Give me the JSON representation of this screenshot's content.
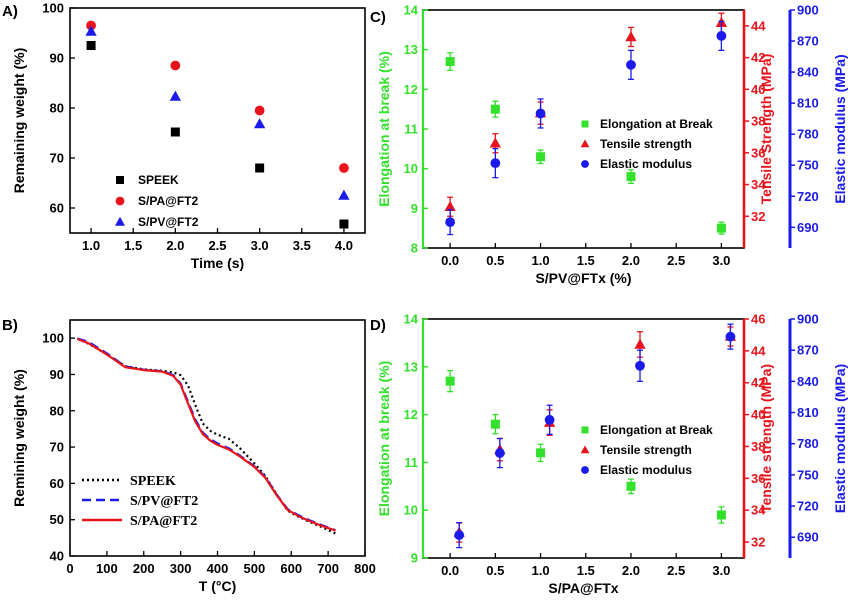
{
  "chart_data": [
    {
      "panel": "A)",
      "type": "scatter",
      "xlabel": "Time (s)",
      "ylabel": "Remaining weight (%)",
      "xlim": [
        0.75,
        4.25
      ],
      "ylim": [
        55,
        100
      ],
      "xticks": [
        1.0,
        1.5,
        2.0,
        2.5,
        3.0,
        3.5,
        4.0
      ],
      "yticks": [
        60,
        70,
        80,
        90,
        100
      ],
      "x": [
        1,
        2,
        3,
        4
      ],
      "legend_position": "lower-left",
      "series": [
        {
          "name": "SPEEK",
          "color": "#000000",
          "marker": "square",
          "values": [
            92.5,
            75.2,
            68.0,
            56.8
          ]
        },
        {
          "name": "S/PA@FT2",
          "color": "#e8141b",
          "marker": "circle",
          "values": [
            96.5,
            88.5,
            79.5,
            68.0
          ]
        },
        {
          "name": "S/PV@FT2",
          "color": "#1a1aeb",
          "marker": "triangle",
          "values": [
            95.3,
            82.3,
            76.8,
            62.5
          ]
        }
      ]
    },
    {
      "panel": "B)",
      "type": "line",
      "xlabel": "T (°C)",
      "ylabel": "Remining weight (%)",
      "xlim": [
        0,
        800
      ],
      "ylim": [
        40,
        105
      ],
      "xticks": [
        0,
        100,
        200,
        300,
        400,
        500,
        600,
        700,
        800
      ],
      "yticks": [
        40,
        50,
        60,
        70,
        80,
        90,
        100
      ],
      "legend_position": "lower-left",
      "series": [
        {
          "name": "SPEEK",
          "color": "#000000",
          "dash": "dotted",
          "points": [
            [
              20,
              99.8
            ],
            [
              50,
              98.5
            ],
            [
              100,
              95.5
            ],
            [
              150,
              92.3
            ],
            [
              200,
              91.4
            ],
            [
              250,
              91.0
            ],
            [
              280,
              90.6
            ],
            [
              300,
              89.8
            ],
            [
              320,
              87.0
            ],
            [
              340,
              81.5
            ],
            [
              360,
              76.5
            ],
            [
              380,
              74.5
            ],
            [
              400,
              73.4
            ],
            [
              430,
              72.3
            ],
            [
              460,
              69.8
            ],
            [
              500,
              65.5
            ],
            [
              530,
              62.0
            ],
            [
              560,
              57.0
            ],
            [
              590,
              52.5
            ],
            [
              620,
              50.8
            ],
            [
              650,
              49.4
            ],
            [
              680,
              48.1
            ],
            [
              720,
              46.2
            ]
          ]
        },
        {
          "name": "S/PV@FT2",
          "color": "#1a1aeb",
          "dash": "dashed",
          "points": [
            [
              20,
              99.9
            ],
            [
              50,
              99.0
            ],
            [
              100,
              95.8
            ],
            [
              150,
              92.2
            ],
            [
              200,
              91.3
            ],
            [
              250,
              90.9
            ],
            [
              280,
              89.8
            ],
            [
              300,
              87.5
            ],
            [
              320,
              82.5
            ],
            [
              340,
              77.5
            ],
            [
              360,
              74.0
            ],
            [
              380,
              72.2
            ],
            [
              400,
              71.0
            ],
            [
              430,
              69.7
            ],
            [
              460,
              67.7
            ],
            [
              500,
              64.7
            ],
            [
              530,
              61.8
            ],
            [
              560,
              57.0
            ],
            [
              590,
              52.9
            ],
            [
              620,
              51.2
            ],
            [
              650,
              49.8
            ],
            [
              680,
              48.6
            ],
            [
              720,
              47.1
            ]
          ]
        },
        {
          "name": "S/PA@FT2",
          "color": "#e8141b",
          "dash": "solid",
          "points": [
            [
              20,
              99.8
            ],
            [
              50,
              98.6
            ],
            [
              100,
              95.5
            ],
            [
              150,
              92.0
            ],
            [
              200,
              91.2
            ],
            [
              250,
              90.8
            ],
            [
              280,
              89.6
            ],
            [
              300,
              87.2
            ],
            [
              320,
              82.0
            ],
            [
              340,
              77.0
            ],
            [
              360,
              73.6
            ],
            [
              380,
              71.8
            ],
            [
              400,
              70.6
            ],
            [
              430,
              69.4
            ],
            [
              460,
              67.5
            ],
            [
              500,
              64.5
            ],
            [
              530,
              61.5
            ],
            [
              560,
              56.8
            ],
            [
              590,
              52.7
            ],
            [
              620,
              51.0
            ],
            [
              650,
              49.6
            ],
            [
              680,
              48.4
            ],
            [
              720,
              47.0
            ]
          ]
        }
      ]
    },
    {
      "panel": "C)",
      "type": "scatter",
      "xlabel": "S/PV@FTx (%)",
      "xlim": [
        -0.3,
        3.25
      ],
      "xticks": [
        0.0,
        0.5,
        1.0,
        1.5,
        2.0,
        2.5,
        3.0
      ],
      "x": [
        0,
        0.5,
        1.0,
        2.0,
        3.0
      ],
      "legend_position": "right",
      "axes": [
        {
          "label": "Elongation at break (%)",
          "color": "#33e02b",
          "side": "left",
          "lim": [
            8,
            14
          ],
          "ticks": [
            8,
            9,
            10,
            11,
            12,
            13,
            14
          ]
        },
        {
          "label": "Tensile Strength (MPa)",
          "color": "#e8141b",
          "side": "right",
          "lim": [
            30,
            45
          ],
          "ticks": [
            32,
            34,
            36,
            38,
            40,
            42,
            44
          ]
        },
        {
          "label": "Elastic modulus (MPa)",
          "color": "#1a1aeb",
          "side": "right-outer",
          "lim": [
            670,
            900
          ],
          "ticks": [
            690,
            720,
            750,
            780,
            810,
            840,
            870,
            900
          ]
        }
      ],
      "series": [
        {
          "name": "Elongation at Break",
          "axis": 0,
          "color": "#33e02b",
          "marker": "square",
          "values": [
            12.7,
            11.5,
            10.3,
            9.8,
            8.5
          ],
          "errors": [
            0.22,
            0.2,
            0.17,
            0.17,
            0.15
          ]
        },
        {
          "name": "Tensile strength",
          "axis": 1,
          "color": "#e8141b",
          "marker": "triangle",
          "values": [
            32.6,
            36.6,
            38.5,
            43.3,
            44.2
          ],
          "errors": [
            0.6,
            0.6,
            0.7,
            0.6,
            0.6
          ]
        },
        {
          "name": "Elastic modulus",
          "axis": 2,
          "color": "#1a1aeb",
          "marker": "circle",
          "values": [
            695,
            752,
            800,
            847,
            875
          ],
          "errors": [
            12,
            14,
            14,
            14,
            14
          ]
        }
      ]
    },
    {
      "panel": "D)",
      "type": "scatter",
      "xlabel": "S/PA@FTx",
      "xlim": [
        -0.3,
        3.25
      ],
      "xticks": [
        0.0,
        0.5,
        1.0,
        1.5,
        2.0,
        2.5,
        3.0
      ],
      "x": [
        0.1,
        0.55,
        1.1,
        2.1,
        3.1
      ],
      "x_elong": [
        0,
        0.5,
        1.0,
        2.0,
        3.0
      ],
      "legend_position": "right",
      "axes": [
        {
          "label": "Elongation at break (%)",
          "color": "#33e02b",
          "side": "left",
          "lim": [
            9,
            14
          ],
          "ticks": [
            9,
            10,
            11,
            12,
            13,
            14
          ]
        },
        {
          "label": "Tensile strength (MPa)",
          "color": "#e8141b",
          "side": "right",
          "lim": [
            31,
            46
          ],
          "ticks": [
            32,
            34,
            36,
            38,
            40,
            42,
            44,
            46
          ]
        },
        {
          "label": "Elastic modulus (MPa)",
          "color": "#1a1aeb",
          "side": "right-outer",
          "lim": [
            670,
            900
          ],
          "ticks": [
            690,
            720,
            750,
            780,
            810,
            840,
            870,
            900
          ]
        }
      ],
      "series": [
        {
          "name": "Elongation at Break",
          "axis": 0,
          "color": "#33e02b",
          "marker": "square",
          "values": [
            12.7,
            11.8,
            11.2,
            10.5,
            9.9
          ],
          "errors": [
            0.22,
            0.2,
            0.18,
            0.15,
            0.17
          ]
        },
        {
          "name": "Tensile strength",
          "axis": 1,
          "color": "#e8141b",
          "marker": "triangle",
          "values": [
            32.6,
            37.8,
            39.5,
            44.4,
            44.9
          ],
          "errors": [
            0.6,
            0.7,
            0.8,
            0.8,
            0.6
          ]
        },
        {
          "name": "Elastic modulus",
          "axis": 2,
          "color": "#1a1aeb",
          "marker": "circle",
          "values": [
            692,
            771,
            803,
            855,
            883
          ],
          "errors": [
            12,
            14,
            14,
            15,
            12
          ]
        }
      ]
    }
  ]
}
